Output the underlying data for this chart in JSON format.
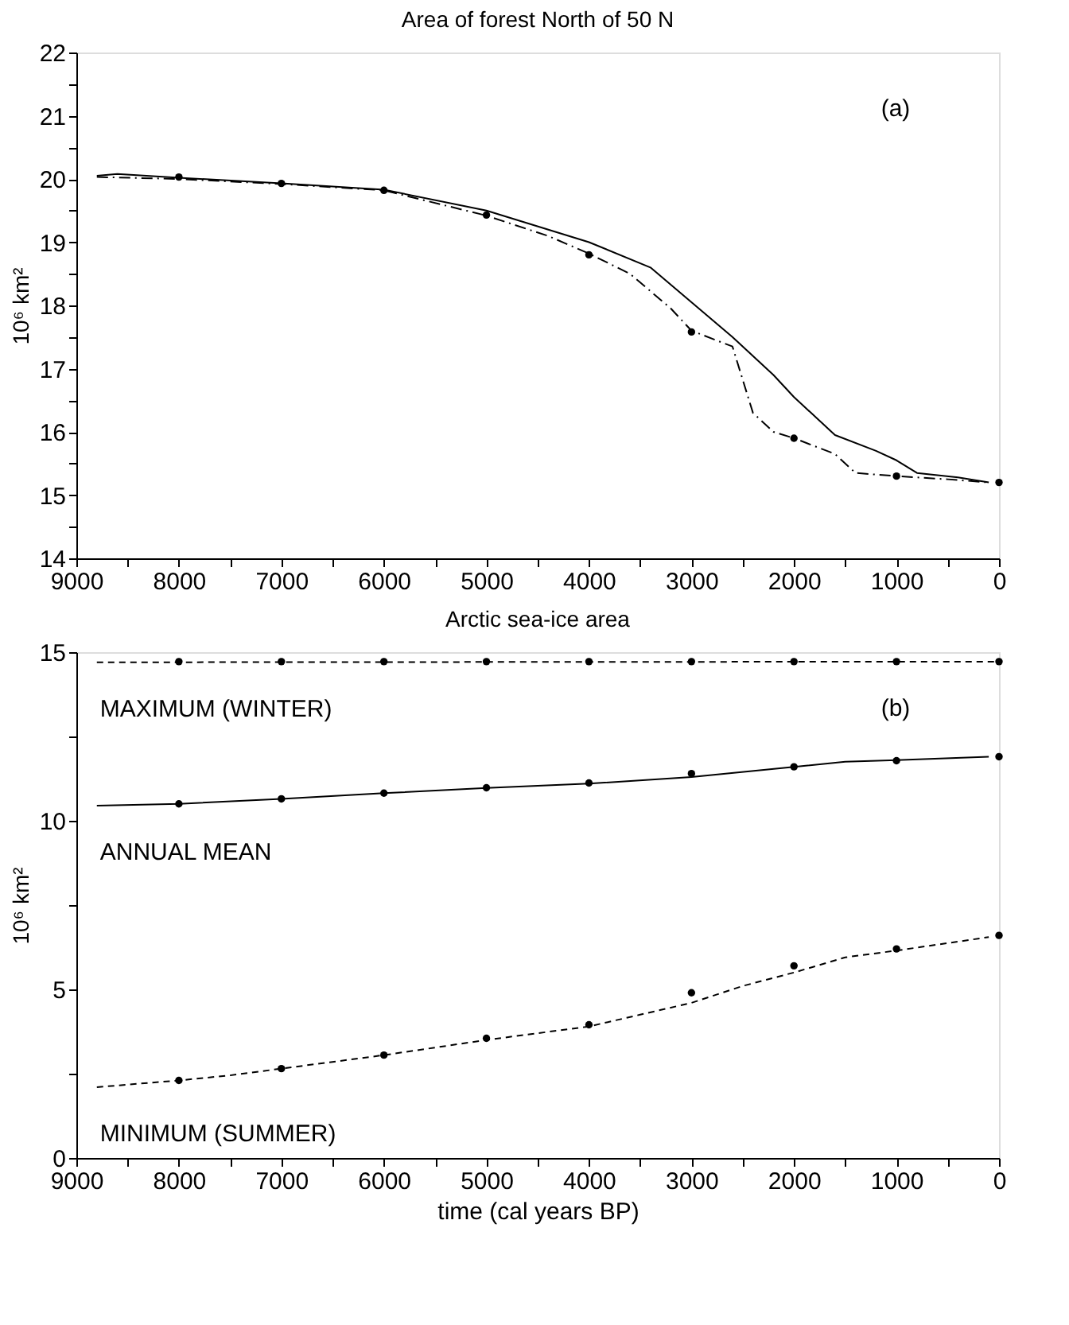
{
  "chart_data": [
    {
      "type": "line",
      "title": "Area of forest North of 50 N",
      "ylabel": "10⁶ km²",
      "xlim": [
        9000,
        0
      ],
      "ylim": [
        14,
        22
      ],
      "xticks": [
        9000,
        {
          "value": 8500,
          "label": null
        },
        8000,
        {
          "value": 7500,
          "label": null
        },
        7000,
        {
          "value": 6500,
          "label": null
        },
        6000,
        {
          "value": 5500,
          "label": null
        },
        5000,
        {
          "value": 4500,
          "label": null
        },
        4000,
        {
          "value": 3500,
          "label": null
        },
        3000,
        {
          "value": 2500,
          "label": null
        },
        2000,
        {
          "value": 1500,
          "label": null
        },
        1000,
        {
          "value": 500,
          "label": null
        },
        0
      ],
      "yticks": [
        14,
        {
          "value": 14.5,
          "label": null
        },
        15,
        {
          "value": 15.5,
          "label": null
        },
        16,
        {
          "value": 16.5,
          "label": null
        },
        17,
        {
          "value": 17.5,
          "label": null
        },
        18,
        {
          "value": 18.5,
          "label": null
        },
        19,
        {
          "value": 19.5,
          "label": null
        },
        20,
        {
          "value": 20.5,
          "label": null
        },
        21,
        {
          "value": 21.5,
          "label": null
        },
        22
      ],
      "grid": false,
      "annotations": [
        "(a)"
      ],
      "series": [
        {
          "type": "line",
          "line_style": "solid",
          "color": "#000000",
          "x": [
            8800,
            8600,
            8000,
            7000,
            6000,
            5000,
            4000,
            3400,
            3000,
            2600,
            2200,
            2000,
            1600,
            1200,
            1000,
            800,
            400,
            100
          ],
          "values": [
            20.05,
            20.08,
            20.02,
            19.93,
            19.83,
            19.5,
            19.0,
            18.6,
            18.05,
            17.5,
            16.9,
            16.55,
            15.95,
            15.7,
            15.55,
            15.35,
            15.28,
            15.2
          ]
        },
        {
          "type": "line",
          "line_style": "dashdot",
          "color": "#000000",
          "x": [
            8800,
            8000,
            7000,
            6000,
            5000,
            4400,
            4000,
            3600,
            3200,
            3000,
            2600,
            2400,
            2200,
            2000,
            1600,
            1400,
            1000,
            500,
            100
          ],
          "values": [
            20.03,
            20.0,
            19.92,
            19.82,
            19.42,
            19.1,
            18.82,
            18.5,
            17.95,
            17.6,
            17.35,
            16.3,
            16.0,
            15.9,
            15.65,
            15.35,
            15.3,
            15.25,
            15.2
          ]
        },
        {
          "type": "scatter",
          "marker": "circle",
          "color": "#000000",
          "x": [
            8000,
            7000,
            6000,
            5000,
            4000,
            3000,
            2000,
            1000,
            0
          ],
          "values": [
            20.03,
            19.93,
            19.82,
            19.43,
            18.8,
            17.58,
            15.9,
            15.3,
            15.2
          ]
        }
      ]
    },
    {
      "type": "line",
      "title": "Arctic sea-ice area",
      "xlabel": "time (cal years BP)",
      "ylabel": "10⁶ km²",
      "xlim": [
        9000,
        0
      ],
      "ylim": [
        0,
        15
      ],
      "xticks": [
        9000,
        {
          "value": 8500,
          "label": null
        },
        8000,
        {
          "value": 7500,
          "label": null
        },
        7000,
        {
          "value": 6500,
          "label": null
        },
        6000,
        {
          "value": 5500,
          "label": null
        },
        5000,
        {
          "value": 4500,
          "label": null
        },
        4000,
        {
          "value": 3500,
          "label": null
        },
        3000,
        {
          "value": 2500,
          "label": null
        },
        2000,
        {
          "value": 1500,
          "label": null
        },
        1000,
        {
          "value": 500,
          "label": null
        },
        0
      ],
      "yticks": [
        0,
        {
          "value": 2.5,
          "label": null
        },
        5,
        {
          "value": 7.5,
          "label": null
        },
        10,
        {
          "value": 12.5,
          "label": null
        },
        15
      ],
      "grid": false,
      "annotations": [
        "(b)"
      ],
      "series": [
        {
          "type": "line",
          "name": "MAXIMUM (WINTER)",
          "line_style": "dashed",
          "color": "#000000",
          "x": [
            8800,
            0
          ],
          "values": [
            14.7,
            14.72
          ]
        },
        {
          "type": "scatter",
          "marker": "circle",
          "color": "#000000",
          "x": [
            8000,
            7000,
            6000,
            5000,
            4000,
            3000,
            2000,
            1000,
            0
          ],
          "values": [
            14.72,
            14.72,
            14.72,
            14.72,
            14.72,
            14.72,
            14.72,
            14.72,
            14.72
          ]
        },
        {
          "type": "line",
          "name": "ANNUAL MEAN",
          "line_style": "solid",
          "color": "#000000",
          "x": [
            8800,
            8000,
            7000,
            6000,
            5000,
            4000,
            3000,
            2000,
            1500,
            1000,
            100
          ],
          "values": [
            10.45,
            10.5,
            10.65,
            10.82,
            10.97,
            11.1,
            11.3,
            11.6,
            11.75,
            11.8,
            11.9
          ]
        },
        {
          "type": "scatter",
          "marker": "circle",
          "color": "#000000",
          "x": [
            8000,
            7000,
            6000,
            5000,
            4000,
            3000,
            2000,
            1000,
            0
          ],
          "values": [
            10.5,
            10.65,
            10.82,
            10.98,
            11.12,
            11.4,
            11.6,
            11.78,
            11.9
          ]
        },
        {
          "type": "line",
          "name": "MINIMUM (SUMMER)",
          "line_style": "dashed",
          "color": "#000000",
          "x": [
            8800,
            8000,
            7500,
            7000,
            6000,
            5000,
            4000,
            3500,
            3000,
            2500,
            2000,
            1500,
            1000,
            100
          ],
          "values": [
            2.1,
            2.3,
            2.45,
            2.65,
            3.05,
            3.5,
            3.9,
            4.25,
            4.6,
            5.1,
            5.5,
            5.95,
            6.15,
            6.55
          ]
        },
        {
          "type": "scatter",
          "marker": "circle",
          "color": "#000000",
          "x": [
            8000,
            7000,
            6000,
            5000,
            4000,
            3000,
            2000,
            1000,
            0
          ],
          "values": [
            2.3,
            2.65,
            3.05,
            3.55,
            3.95,
            4.9,
            5.7,
            6.2,
            6.6
          ]
        }
      ]
    }
  ]
}
